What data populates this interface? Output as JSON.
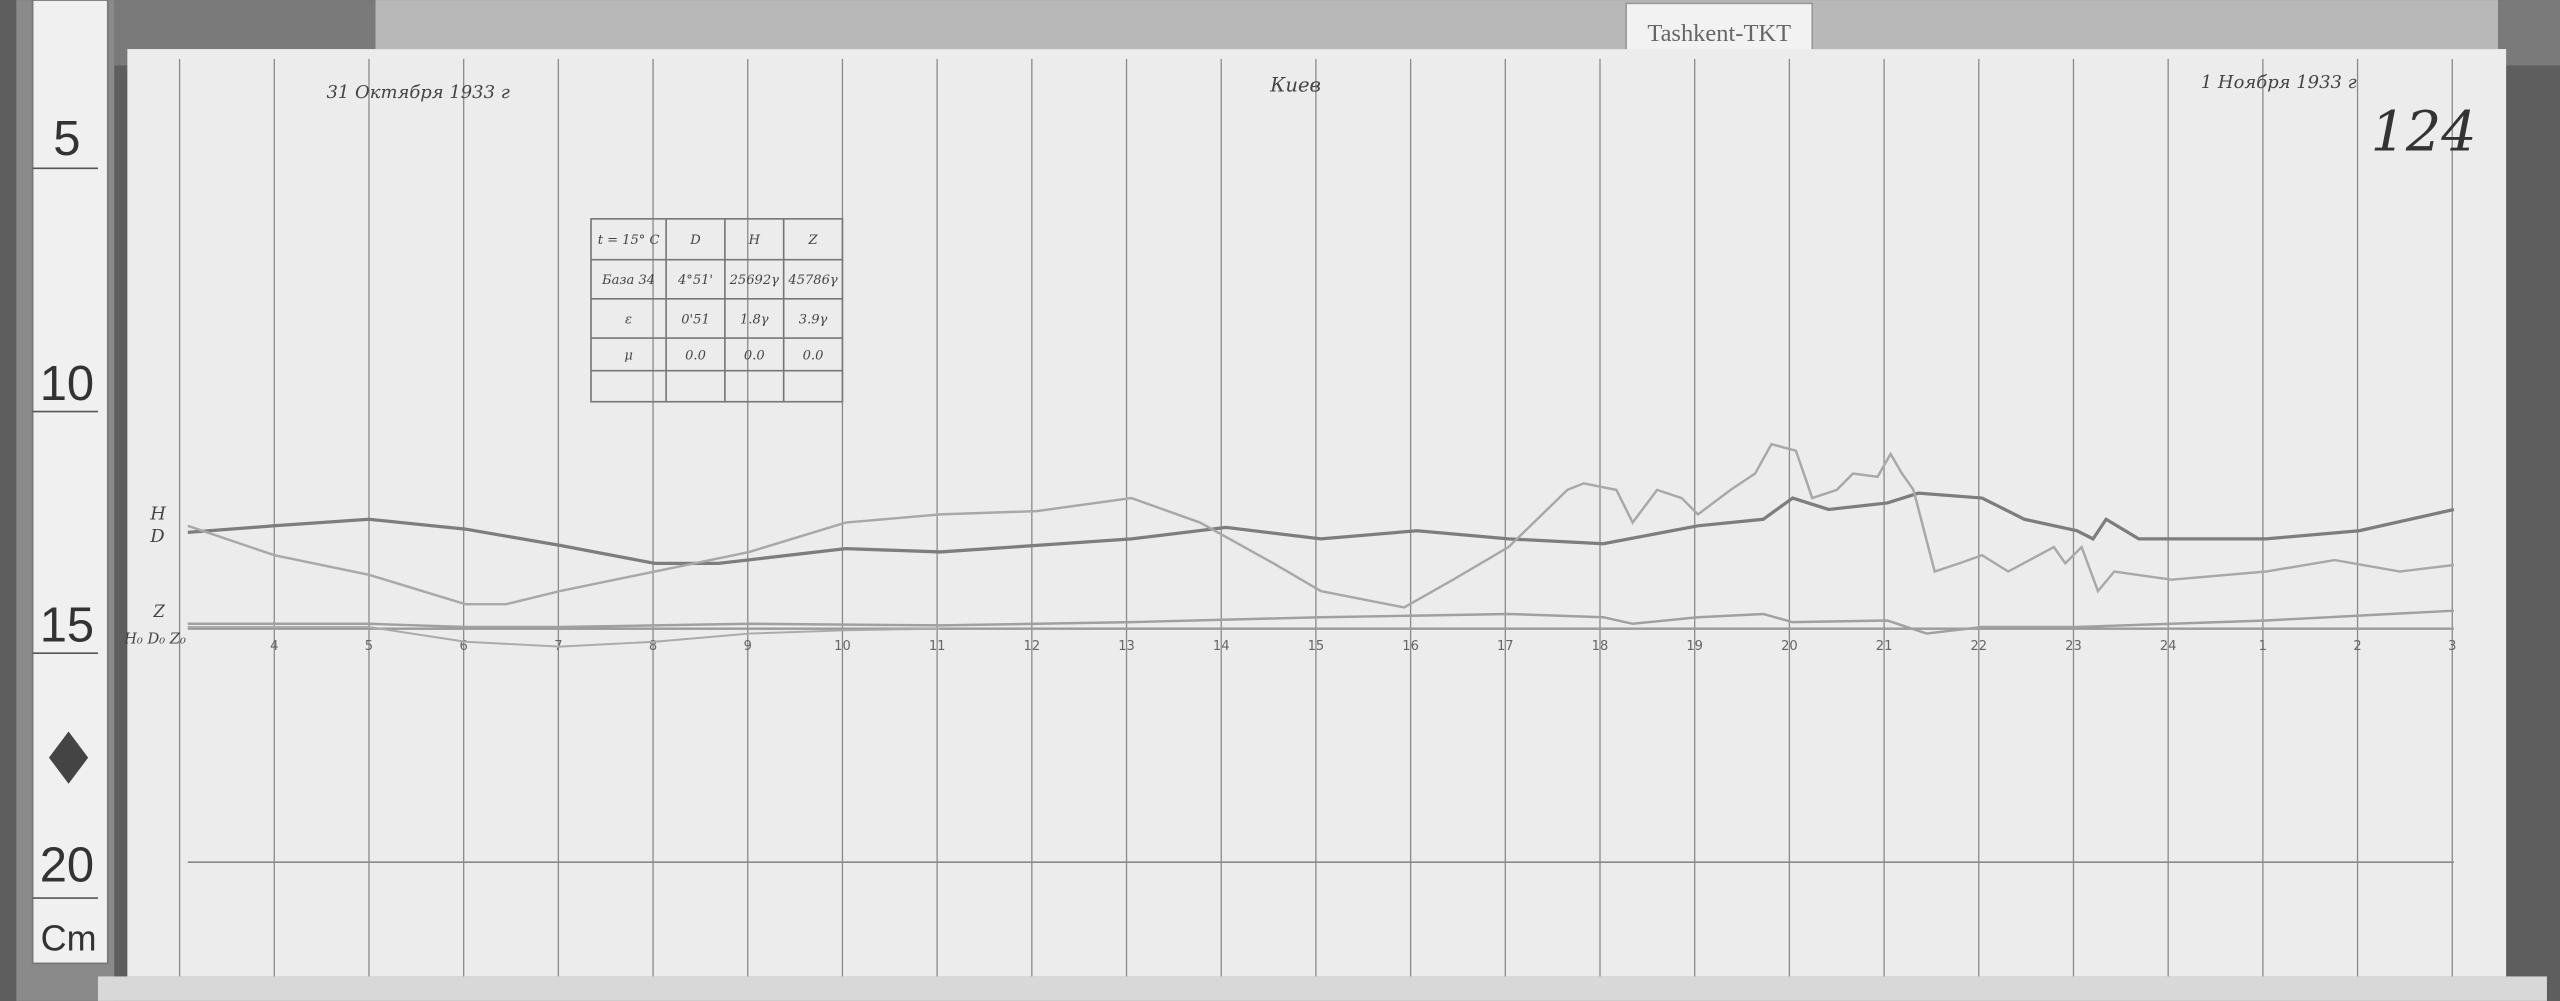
{
  "station_label": "Tashkent-TKT",
  "header": {
    "start_date": "31 Октября 1933 г",
    "station_handwritten": "Киев",
    "end_date": "1 Ноября 1933 г",
    "sheet_number": "124"
  },
  "ruler": {
    "marks": [
      "5",
      "10",
      "15",
      "20"
    ],
    "unit": "Cm"
  },
  "scale_table": {
    "headers": [
      "t = 15° C",
      "D",
      "H",
      "Z"
    ],
    "rows": [
      [
        "База 34",
        "4°51'",
        "25692γ",
        "45786γ"
      ],
      [
        "ε",
        "0'51",
        "1.8γ",
        "3.9γ"
      ],
      [
        "μ",
        "0.0",
        "0.0",
        "0.0"
      ],
      [
        "",
        "",
        "",
        ""
      ]
    ]
  },
  "trace_labels": {
    "h": "H",
    "d": "D",
    "z": "Z",
    "baselines": "H₀ D₀ Z₀"
  },
  "hour_ticks": [
    "4",
    "5",
    "6",
    "7",
    "8",
    "9",
    "10",
    "11",
    "12",
    "13",
    "14",
    "15",
    "16",
    "17",
    "18",
    "19",
    "20",
    "21",
    "22",
    "23",
    "24",
    "1",
    "2",
    "3"
  ],
  "colors": {
    "paper": "#ececec",
    "grid": "#8a8a8a",
    "trace_dark": "#7d7d7d",
    "trace_light": "#a8a8a8",
    "background": "#5a5a5a"
  }
}
